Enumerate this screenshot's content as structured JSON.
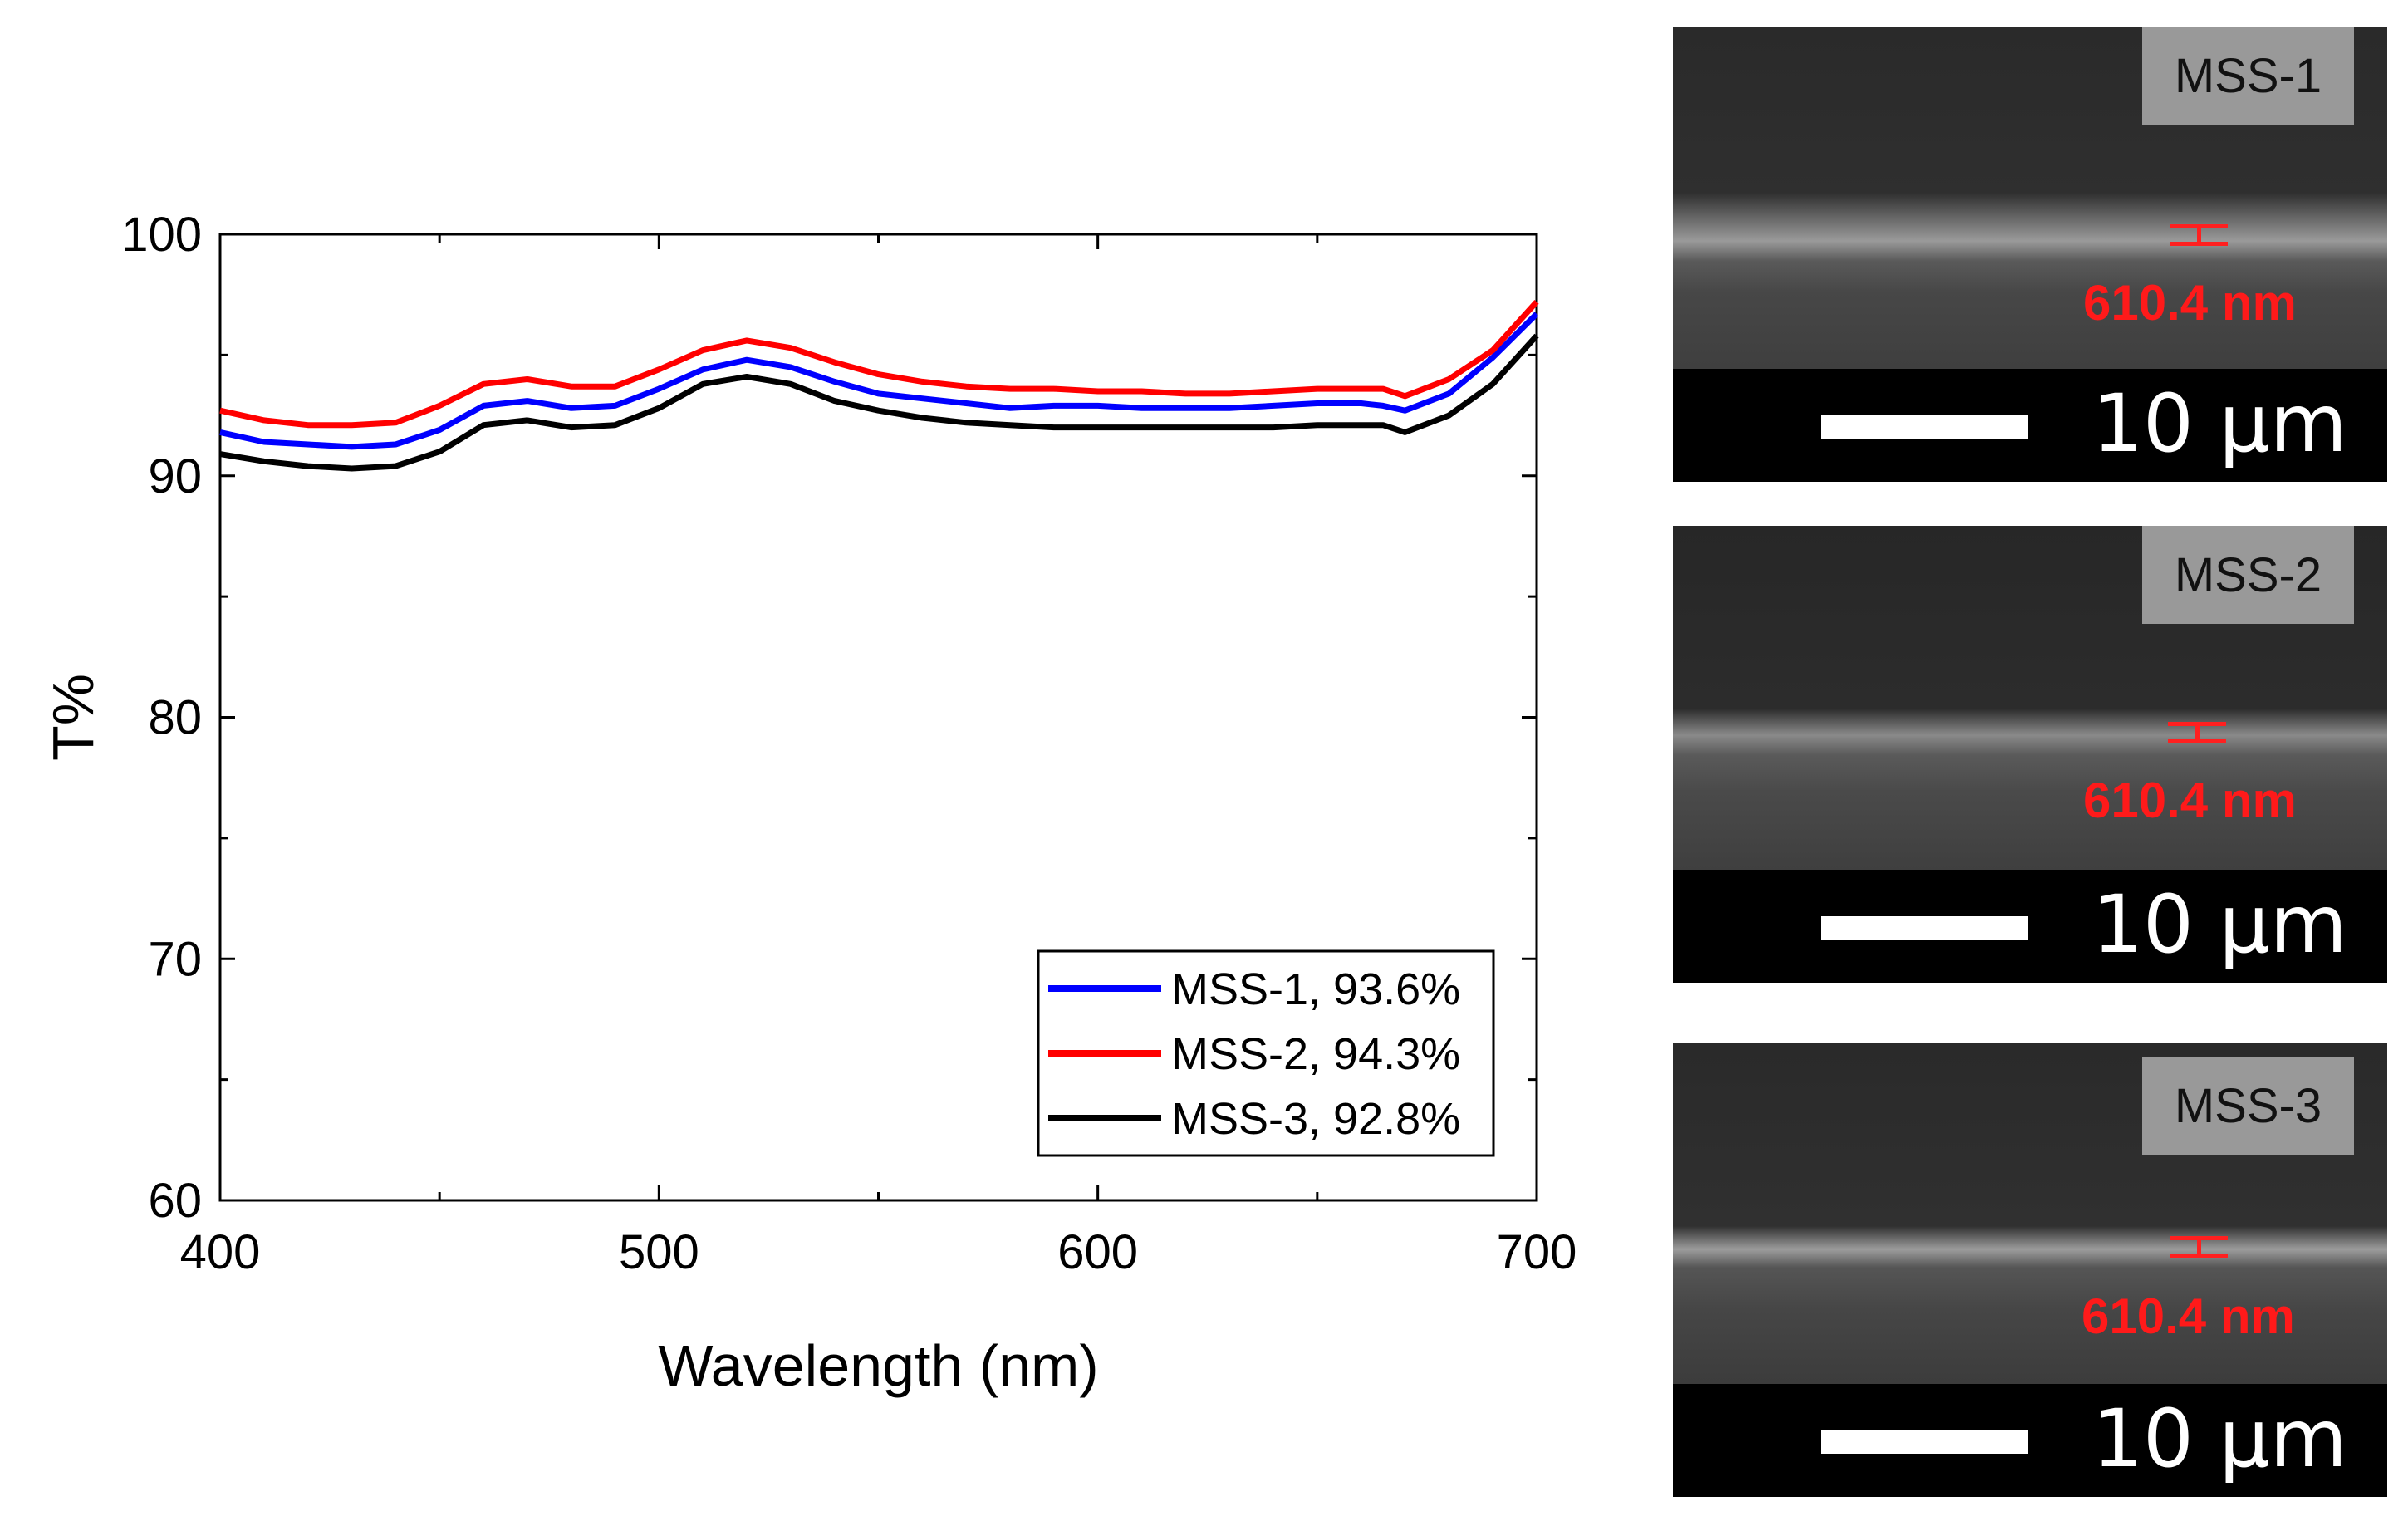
{
  "chart_data": {
    "type": "line",
    "xlabel": "Wavelength (nm)",
    "ylabel": "T%",
    "xlim": [
      400,
      700
    ],
    "ylim": [
      60,
      100
    ],
    "xticks": [
      400,
      500,
      600,
      700
    ],
    "yticks": [
      60,
      70,
      80,
      90,
      100
    ],
    "series": [
      {
        "name": "MSS-1, 93.6%",
        "color": "#0000ff",
        "x": [
          400,
          410,
          420,
          430,
          440,
          450,
          460,
          470,
          480,
          490,
          500,
          510,
          520,
          530,
          540,
          550,
          560,
          570,
          580,
          590,
          600,
          610,
          620,
          630,
          640,
          650,
          660,
          665,
          670,
          680,
          690,
          700
        ],
        "y": [
          91.8,
          91.4,
          91.3,
          91.2,
          91.3,
          91.9,
          92.9,
          93.1,
          92.8,
          92.9,
          93.6,
          94.4,
          94.8,
          94.5,
          93.9,
          93.4,
          93.2,
          93.0,
          92.8,
          92.9,
          92.9,
          92.8,
          92.8,
          92.8,
          92.9,
          93.0,
          93.0,
          92.9,
          92.7,
          93.4,
          94.9,
          96.7
        ]
      },
      {
        "name": "MSS-2, 94.3%",
        "color": "#ff0000",
        "x": [
          400,
          410,
          420,
          430,
          440,
          450,
          460,
          470,
          480,
          490,
          500,
          510,
          520,
          530,
          540,
          550,
          560,
          570,
          580,
          590,
          600,
          610,
          620,
          630,
          640,
          650,
          660,
          665,
          670,
          680,
          690,
          700
        ],
        "y": [
          92.7,
          92.3,
          92.1,
          92.1,
          92.2,
          92.9,
          93.8,
          94.0,
          93.7,
          93.7,
          94.4,
          95.2,
          95.6,
          95.3,
          94.7,
          94.2,
          93.9,
          93.7,
          93.6,
          93.6,
          93.5,
          93.5,
          93.4,
          93.4,
          93.5,
          93.6,
          93.6,
          93.6,
          93.3,
          94.0,
          95.2,
          97.2
        ]
      },
      {
        "name": "MSS-3, 92.8%",
        "color": "#000000",
        "x": [
          400,
          410,
          420,
          430,
          440,
          450,
          460,
          470,
          480,
          490,
          500,
          510,
          520,
          530,
          540,
          550,
          560,
          570,
          580,
          590,
          600,
          610,
          620,
          630,
          640,
          650,
          660,
          665,
          670,
          680,
          690,
          700
        ],
        "y": [
          90.9,
          90.6,
          90.4,
          90.3,
          90.4,
          91.0,
          92.1,
          92.3,
          92.0,
          92.1,
          92.8,
          93.8,
          94.1,
          93.8,
          93.1,
          92.7,
          92.4,
          92.2,
          92.1,
          92.0,
          92.0,
          92.0,
          92.0,
          92.0,
          92.0,
          92.1,
          92.1,
          92.1,
          91.8,
          92.5,
          93.8,
          95.8
        ]
      }
    ],
    "legend": "bottom-right"
  },
  "sem_images": [
    {
      "sample": "MSS-1",
      "thickness": "610.4 nm",
      "scale": "10 µm"
    },
    {
      "sample": "MSS-2",
      "thickness": "610.4 nm",
      "scale": "10 µm"
    },
    {
      "sample": "MSS-3",
      "thickness": "610.4 nm",
      "scale": "10 µm"
    }
  ]
}
